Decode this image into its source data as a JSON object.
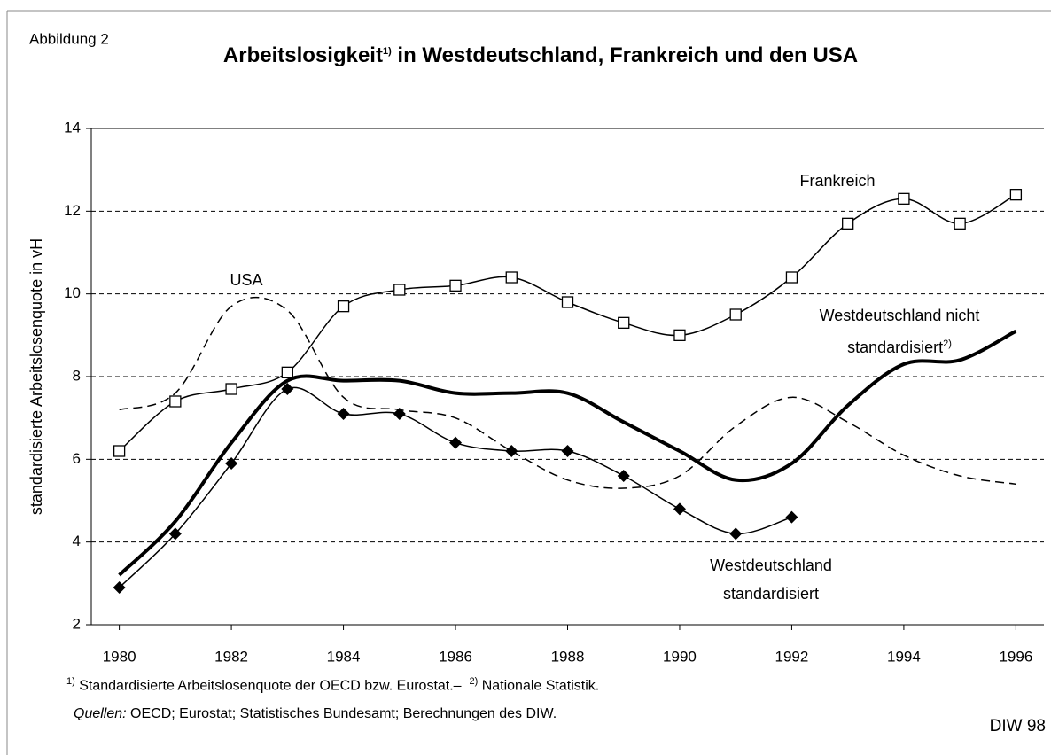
{
  "figure_label": "Abbildung 2",
  "credit": "DIW 98",
  "chart_data": {
    "type": "line",
    "title": "Arbeitslosigkeit",
    "title_note": "1)",
    "title_rest": "in Westdeutschland, Frankreich und den USA",
    "y_label": "standardisierte Arbeitslosenquote in vH",
    "x": [
      1980,
      1981,
      1982,
      1983,
      1984,
      1985,
      1986,
      1987,
      1988,
      1989,
      1990,
      1991,
      1992,
      1993,
      1994,
      1995,
      1996
    ],
    "xlim": [
      1979.5,
      1996.5
    ],
    "xticks": [
      1980,
      1982,
      1984,
      1986,
      1988,
      1990,
      1992,
      1994,
      1996
    ],
    "ylim": [
      2,
      14
    ],
    "yticks": [
      2,
      4,
      6,
      8,
      10,
      12,
      14
    ],
    "grid": true,
    "series": [
      {
        "name": "Frankreich",
        "color": "#000000",
        "style": "solid",
        "width": 1.5,
        "marker": "square",
        "values": [
          6.2,
          7.4,
          7.7,
          8.1,
          9.7,
          10.1,
          10.2,
          10.4,
          9.8,
          9.3,
          9.0,
          9.5,
          10.4,
          11.7,
          12.3,
          11.7,
          12.4
        ]
      },
      {
        "name": "USA",
        "color": "#000000",
        "style": "dashed",
        "width": 1.5,
        "marker": "none",
        "values": [
          7.2,
          7.6,
          9.7,
          9.6,
          7.5,
          7.2,
          7.0,
          6.2,
          5.5,
          5.3,
          5.6,
          6.8,
          7.5,
          6.9,
          6.1,
          5.6,
          5.4
        ]
      },
      {
        "name": "Westdeutschland nicht standardisiert",
        "note": "2)",
        "color": "#000000",
        "style": "solid",
        "width": 4,
        "marker": "none",
        "values": [
          3.2,
          4.5,
          6.4,
          7.9,
          7.9,
          7.9,
          7.6,
          7.6,
          7.6,
          6.9,
          6.2,
          5.5,
          5.9,
          7.3,
          8.3,
          8.4,
          9.1
        ]
      },
      {
        "name": "Westdeutschland standardisiert",
        "color": "#000000",
        "style": "solid",
        "width": 1.5,
        "marker": "diamond",
        "values": [
          2.9,
          4.2,
          5.9,
          7.7,
          7.1,
          7.1,
          6.4,
          6.2,
          6.2,
          5.6,
          4.8,
          4.2,
          4.6,
          null,
          null,
          null,
          null
        ]
      }
    ],
    "footnote_1_marker": "1)",
    "footnote_1": "Standardisierte Arbeitslosenquote der OECD bzw. Eurostat.–",
    "footnote_2_marker": "2)",
    "footnote_2": "Nationale Statistik.",
    "sources_label": "Quellen:",
    "sources": "OECD; Eurostat; Statistisches Bundesamt; Berechnungen des DIW."
  }
}
